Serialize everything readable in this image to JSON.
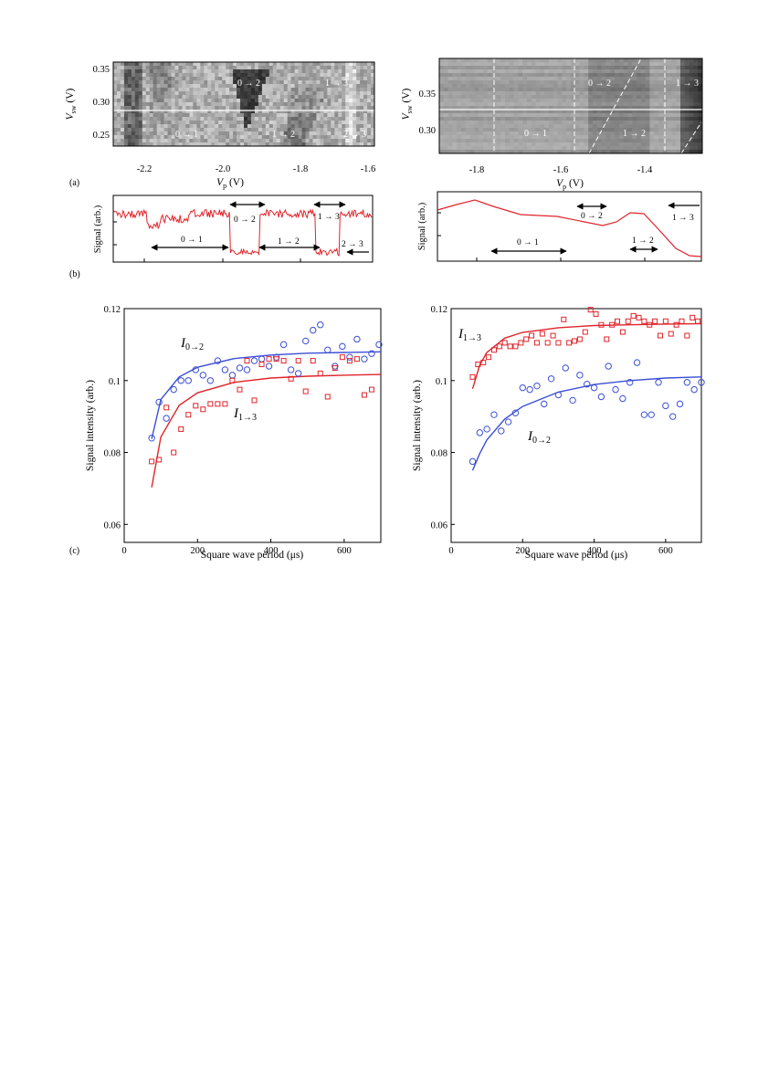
{
  "panel_labels": {
    "a": "(a)",
    "b": "(b)",
    "c": "(c)"
  },
  "colors": {
    "red": "#e0252b",
    "blue": "#3b4fd6",
    "circle": "#3b4fd6",
    "square": "#e0252b"
  },
  "panel_a": {
    "left": {
      "ylabel_main": "V",
      "ylabel_sub": "sw",
      "ylabel_unit": " (V)",
      "xlabel_main": "V",
      "xlabel_sub": "p",
      "xlabel_unit": "  (V)",
      "xticks": [
        "-2.2",
        "-2.0",
        "-1.8",
        "-1.6"
      ],
      "yticks": [
        "0.35",
        "0.30",
        "0.25"
      ],
      "transitions": [
        "0 → 2",
        "1 → 3",
        "0 → 1",
        "1 → 2",
        "2 → 3"
      ]
    },
    "right": {
      "ylabel_main": "V",
      "ylabel_sub": "sw",
      "ylabel_unit": " (V)",
      "xlabel_main": "V",
      "xlabel_sub": "p",
      "xlabel_unit": "  (V)",
      "xticks": [
        "-1.8",
        "-1.6",
        "-1.4"
      ],
      "yticks": [
        "0.35",
        "0.30"
      ],
      "transitions": [
        "0 → 2",
        "1 → 3",
        "0 → 1",
        "1 → 2"
      ]
    }
  },
  "panel_b": {
    "left": {
      "ylabel": "Signal (arb.)",
      "transitions": [
        "0 → 2",
        "1 → 3",
        "0 → 1",
        "1 → 2",
        "2 → 3"
      ]
    },
    "right": {
      "ylabel": "Signal (arb.)",
      "transitions": [
        "0 → 2",
        "1 → 3",
        "0 → 1",
        "1 → 2"
      ]
    }
  },
  "chart_data": [
    {
      "type": "scatter",
      "xlabel": "Square wave period (μs)",
      "ylabel": "Signal intensity (arb.)",
      "xlim": [
        0,
        700
      ],
      "ylim": [
        0.055,
        0.12
      ],
      "xticks": [
        "0",
        "200",
        "400",
        "600"
      ],
      "yticks": [
        "0.06",
        "0.08",
        "0.1",
        "0.12"
      ],
      "series": [
        {
          "name": "I0→2",
          "label_main": "I",
          "label_sub": "0→2",
          "marker": "circle",
          "x": [
            75,
            95,
            115,
            135,
            155,
            175,
            195,
            215,
            235,
            255,
            275,
            295,
            315,
            335,
            355,
            375,
            395,
            415,
            435,
            455,
            475,
            495,
            515,
            535,
            555,
            575,
            595,
            615,
            635,
            655,
            675,
            695
          ],
          "y": [
            0.084,
            0.094,
            0.0895,
            0.0975,
            0.1,
            0.1,
            0.103,
            0.1015,
            0.1,
            0.1055,
            0.103,
            0.1015,
            0.1035,
            0.103,
            0.1055,
            0.106,
            0.104,
            0.1065,
            0.11,
            0.103,
            0.102,
            0.111,
            0.114,
            0.1155,
            0.1085,
            0.104,
            0.1095,
            0.1065,
            0.1115,
            0.106,
            0.1075,
            0.11
          ],
          "fit": [
            [
              75,
              0.0838
            ],
            [
              100,
              0.0947
            ],
            [
              150,
              0.101
            ],
            [
              200,
              0.1037
            ],
            [
              300,
              0.1061
            ],
            [
              400,
              0.1071
            ],
            [
              500,
              0.1076
            ],
            [
              600,
              0.1078
            ],
            [
              700,
              0.108
            ]
          ]
        },
        {
          "name": "I1→3",
          "label_main": "I",
          "label_sub": "1→3",
          "marker": "square",
          "x": [
            75,
            95,
            115,
            135,
            155,
            175,
            195,
            215,
            235,
            255,
            275,
            295,
            315,
            335,
            355,
            375,
            395,
            415,
            435,
            455,
            475,
            495,
            515,
            535,
            555,
            575,
            595,
            615,
            635,
            655,
            675
          ],
          "y": [
            0.0775,
            0.078,
            0.0925,
            0.08,
            0.0865,
            0.0905,
            0.093,
            0.092,
            0.0935,
            0.0935,
            0.0935,
            0.1,
            0.0975,
            0.1055,
            0.0945,
            0.1045,
            0.106,
            0.106,
            0.1055,
            0.1005,
            0.1055,
            0.097,
            0.1055,
            0.102,
            0.0955,
            0.1035,
            0.1065,
            0.1055,
            0.106,
            0.096,
            0.0975
          ],
          "fit": [
            [
              75,
              0.0703
            ],
            [
              100,
              0.0843
            ],
            [
              150,
              0.0931
            ],
            [
              200,
              0.0966
            ],
            [
              300,
              0.0995
            ],
            [
              400,
              0.1007
            ],
            [
              500,
              0.1012
            ],
            [
              600,
              0.1015
            ],
            [
              700,
              0.1017
            ]
          ]
        }
      ]
    },
    {
      "type": "scatter",
      "xlabel": "Square wave period (μs)",
      "ylabel": "Signal intensity (arb.)",
      "xlim": [
        0,
        700
      ],
      "ylim": [
        0.055,
        0.12
      ],
      "xticks": [
        "0",
        "200",
        "400",
        "600"
      ],
      "yticks": [
        "0.06",
        "0.08",
        "0.1",
        "0.12"
      ],
      "series": [
        {
          "name": "I1→3",
          "label_main": "I",
          "label_sub": "1→3",
          "marker": "square",
          "x": [
            60,
            75,
            90,
            105,
            120,
            135,
            150,
            165,
            180,
            195,
            210,
            225,
            240,
            255,
            270,
            285,
            300,
            315,
            330,
            345,
            360,
            375,
            390,
            405,
            420,
            435,
            450,
            465,
            480,
            495,
            510,
            525,
            540,
            555,
            570,
            585,
            600,
            615,
            630,
            645,
            660,
            675,
            690
          ],
          "y": [
            0.101,
            0.1045,
            0.105,
            0.1065,
            0.1085,
            0.1095,
            0.1105,
            0.1095,
            0.1095,
            0.1105,
            0.1115,
            0.1125,
            0.1105,
            0.113,
            0.1105,
            0.1125,
            0.1105,
            0.117,
            0.1105,
            0.111,
            0.1115,
            0.1135,
            0.1197,
            0.1185,
            0.1155,
            0.1115,
            0.1155,
            0.1165,
            0.1135,
            0.1165,
            0.118,
            0.1175,
            0.1165,
            0.1155,
            0.1165,
            0.1125,
            0.1165,
            0.113,
            0.1155,
            0.1165,
            0.1125,
            0.1175,
            0.1165
          ],
          "fit": [
            [
              60,
              0.0977
            ],
            [
              80,
              0.1043
            ],
            [
              100,
              0.1078
            ],
            [
              150,
              0.1118
            ],
            [
              200,
              0.1134
            ],
            [
              300,
              0.1147
            ],
            [
              400,
              0.1153
            ],
            [
              500,
              0.1155
            ],
            [
              600,
              0.1157
            ],
            [
              700,
              0.1158
            ]
          ]
        },
        {
          "name": "I0→2",
          "label_main": "I",
          "label_sub": "0→2",
          "marker": "circle",
          "x": [
            60,
            80,
            100,
            120,
            140,
            160,
            180,
            200,
            220,
            240,
            260,
            280,
            300,
            320,
            340,
            360,
            380,
            400,
            420,
            440,
            460,
            480,
            500,
            520,
            540,
            560,
            580,
            600,
            620,
            640,
            660,
            680,
            700
          ],
          "y": [
            0.0775,
            0.0855,
            0.0865,
            0.0905,
            0.086,
            0.0885,
            0.091,
            0.098,
            0.0975,
            0.0985,
            0.0935,
            0.1005,
            0.096,
            0.1035,
            0.0945,
            0.1015,
            0.099,
            0.098,
            0.0955,
            0.104,
            0.0975,
            0.095,
            0.0995,
            0.105,
            0.0905,
            0.0905,
            0.0995,
            0.093,
            0.09,
            0.0935,
            0.0995,
            0.0975,
            0.0995
          ],
          "fit": [
            [
              60,
              0.075
            ],
            [
              80,
              0.0797
            ],
            [
              100,
              0.0835
            ],
            [
              150,
              0.0893
            ],
            [
              200,
              0.0928
            ],
            [
              300,
              0.0968
            ],
            [
              400,
              0.0989
            ],
            [
              500,
              0.1
            ],
            [
              600,
              0.1007
            ],
            [
              700,
              0.101
            ]
          ]
        }
      ]
    }
  ]
}
